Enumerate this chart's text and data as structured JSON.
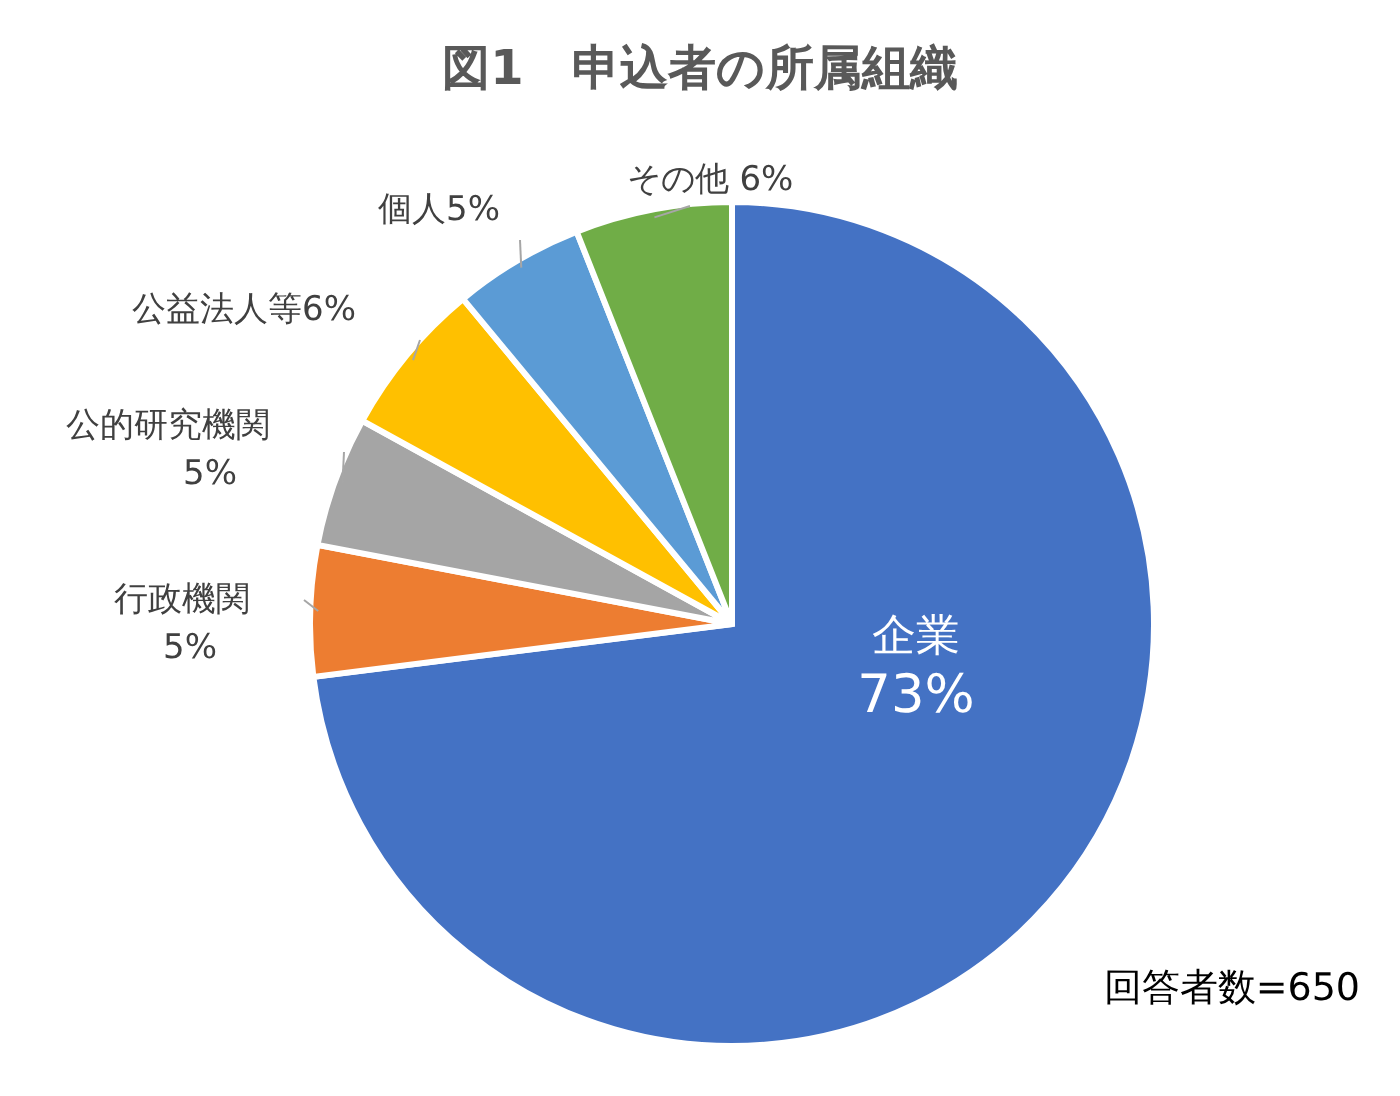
{
  "chart_data": {
    "type": "pie",
    "title": "図1　申込者の所属組織",
    "categories": [
      "企業",
      "行政機関",
      "公的研究機関",
      "公益法人等",
      "個人",
      "その他"
    ],
    "values": [
      73,
      5,
      5,
      6,
      5,
      6
    ],
    "colors": [
      "#4472c4",
      "#ed7d31",
      "#a5a5a5",
      "#ffc000",
      "#5b9bd5",
      "#70ad47"
    ],
    "value_labels": [
      "73%",
      "5%",
      "5%",
      "6%",
      "5%",
      "6%"
    ],
    "annotations": [
      "回答者数=650"
    ]
  }
}
